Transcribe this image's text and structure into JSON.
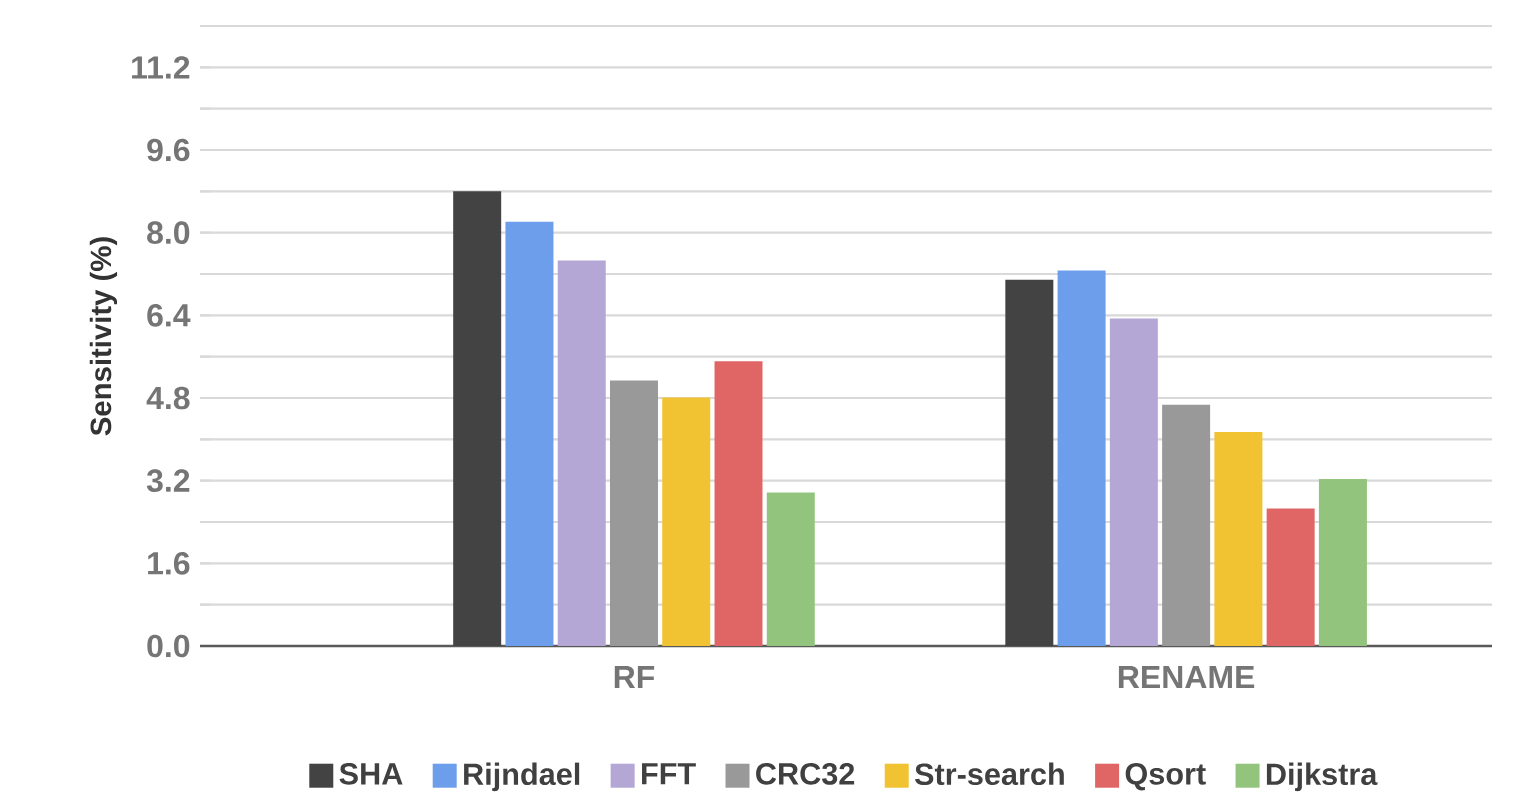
{
  "chart_data": {
    "type": "bar",
    "ylabel": "Sensitivity (%)",
    "categories": [
      "RF",
      "RENAME"
    ],
    "series": [
      {
        "name": "SHA",
        "color": "#434343",
        "values": [
          8.8,
          7.09
        ]
      },
      {
        "name": "Rijndael",
        "color": "#6d9eeb",
        "values": [
          8.21,
          7.27
        ]
      },
      {
        "name": "FFT",
        "color": "#b4a7d6",
        "values": [
          7.46,
          6.34
        ]
      },
      {
        "name": "CRC32",
        "color": "#999999",
        "values": [
          5.14,
          4.67
        ]
      },
      {
        "name": "Str-search",
        "color": "#f1c232",
        "values": [
          4.81,
          4.14
        ]
      },
      {
        "name": "Qsort",
        "color": "#e06666",
        "values": [
          5.51,
          2.66
        ]
      },
      {
        "name": "Dijkstra",
        "color": "#93c47d",
        "values": [
          2.97,
          3.23
        ]
      }
    ],
    "ylim": [
      0,
      12
    ],
    "yticks": [
      {
        "value": 0,
        "label": "0.0"
      },
      {
        "value": 0.8,
        "label": null
      },
      1.6,
      {
        "value": 2.4,
        "label": null
      },
      3.2,
      {
        "value": 4.0,
        "label": null
      },
      4.8,
      {
        "value": 5.6,
        "label": null
      },
      6.4,
      {
        "value": 7.2,
        "label": null
      },
      {
        "value": 8.0,
        "label": "8.0"
      },
      {
        "value": 8.8,
        "label": null
      },
      9.6,
      {
        "value": 10.4,
        "label": null
      },
      11.2,
      {
        "value": 12.0,
        "label": null
      }
    ],
    "grid": "y",
    "legend": "bottom"
  }
}
